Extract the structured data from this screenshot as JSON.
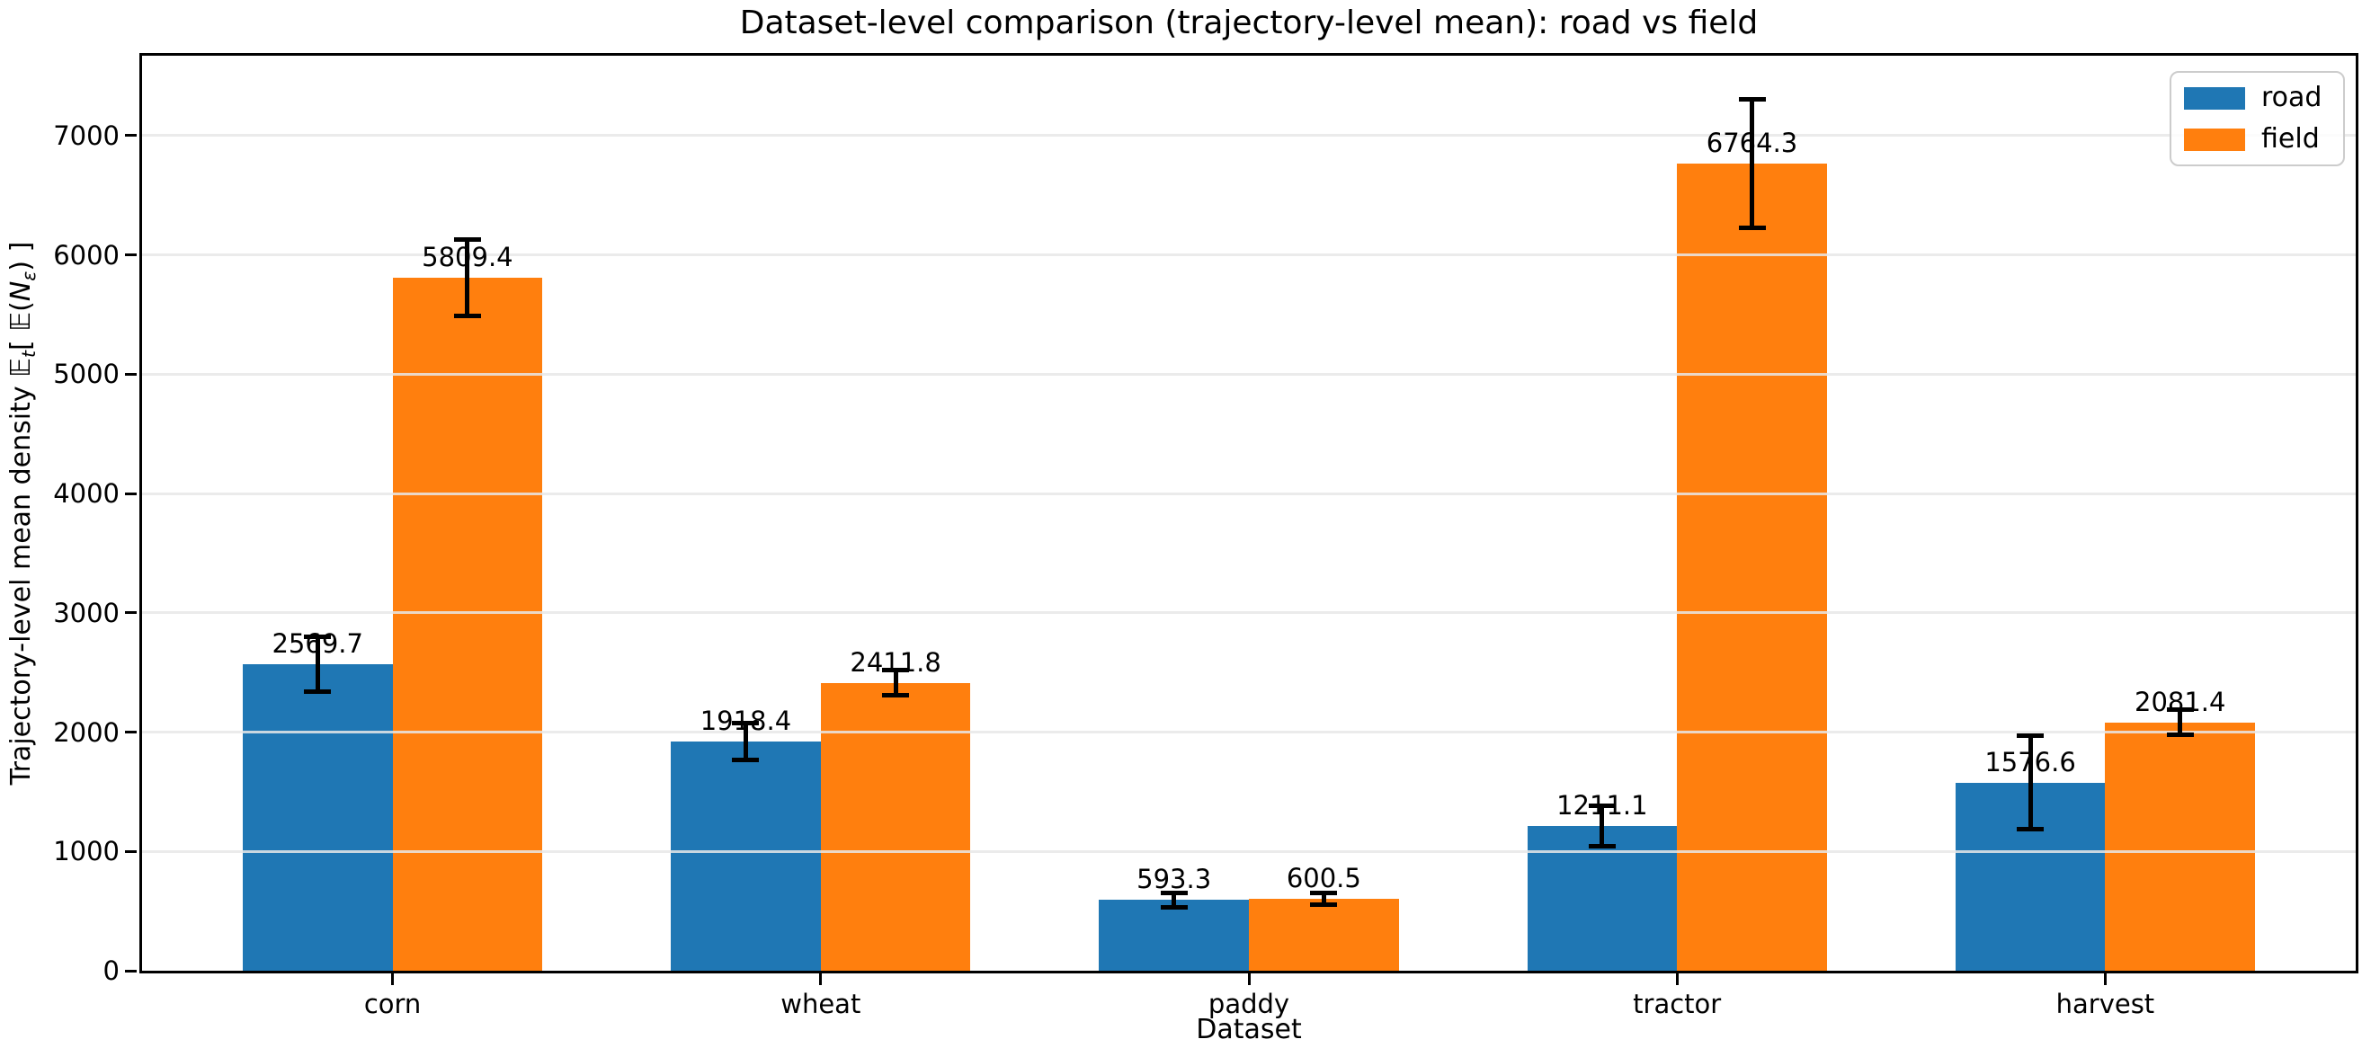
{
  "figure": {
    "background": "#ffffff",
    "spine_color": "#000000",
    "grid_color": "#e7e7e7",
    "legend_border_color": "#cccccc"
  },
  "chart_data": {
    "type": "bar",
    "title": "Dataset-level comparison (trajectory-level mean): road vs field",
    "xlabel": "Dataset",
    "ylabel": "Trajectory-level mean density 𝔼t[ 𝔼(Nε) ]",
    "ylabel_segments": [
      {
        "t": "Trajectory-level mean density  "
      },
      {
        "t": "𝔼"
      },
      {
        "t": "t",
        "sub": true,
        "italic": true
      },
      {
        "t": "[ "
      },
      {
        "t": "𝔼"
      },
      {
        "t": "("
      },
      {
        "t": "N",
        "italic": true
      },
      {
        "t": "ε",
        "sub": true,
        "italic": true
      },
      {
        "t": ") ]"
      }
    ],
    "categories": [
      "corn",
      "wheat",
      "paddy",
      "tractor",
      "harvest"
    ],
    "series": [
      {
        "name": "road",
        "color": "#1f77b4",
        "values": [
          2569.7,
          1918.4,
          593.3,
          1211.1,
          1576.6
        ],
        "errors": [
          230,
          155,
          60,
          170,
          390
        ],
        "value_labels": [
          "2569.7",
          "1918.4",
          "593.3",
          "1211.1",
          "1576.6"
        ]
      },
      {
        "name": "field",
        "color": "#ff7f0e",
        "values": [
          5809.4,
          2411.8,
          600.5,
          6764.3,
          2081.4
        ],
        "errors": [
          320,
          105,
          50,
          540,
          105
        ],
        "value_labels": [
          "5809.4",
          "2411.8",
          "600.5",
          "6764.3",
          "2081.4"
        ]
      }
    ],
    "error_bar_color": "#000000",
    "yticks": [
      0,
      1000,
      2000,
      3000,
      4000,
      5000,
      6000,
      7000
    ],
    "ylim": [
      0,
      7670
    ],
    "bar_width": 0.35,
    "grid": "y",
    "grid_above_bars": true,
    "legend_position": "upper right",
    "bar_value_labels": true
  }
}
